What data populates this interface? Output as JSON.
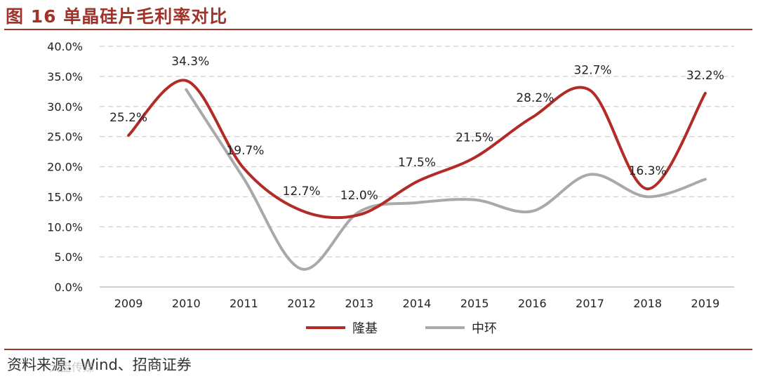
{
  "header": {
    "title": "图 16 单晶硅片毛利率对比"
  },
  "footer": {
    "source": "资料来源：Wind、招商证券",
    "watermark": "大盘传媒"
  },
  "chart_data": {
    "type": "line",
    "title": "图 16 单晶硅片毛利率对比",
    "xlabel": "",
    "ylabel": "",
    "ylim": [
      0,
      40
    ],
    "y_ticks": [
      "0.0%",
      "5.0%",
      "10.0%",
      "15.0%",
      "20.0%",
      "25.0%",
      "30.0%",
      "35.0%",
      "40.0%"
    ],
    "y_tick_values": [
      0,
      5,
      10,
      15,
      20,
      25,
      30,
      35,
      40
    ],
    "categories": [
      "2009",
      "2010",
      "2011",
      "2012",
      "2013",
      "2014",
      "2015",
      "2016",
      "2017",
      "2018",
      "2019"
    ],
    "grid": "horizontal dashed",
    "legend_position": "bottom-center",
    "series": [
      {
        "name": "隆基",
        "color": "#b22b27",
        "values": [
          25.2,
          34.3,
          19.7,
          12.7,
          12.0,
          17.5,
          21.5,
          28.2,
          32.7,
          16.3,
          32.2
        ],
        "labels": [
          "25.2%",
          "34.3%",
          "19.7%",
          "12.7%",
          "12.0%",
          "17.5%",
          "21.5%",
          "28.2%",
          "32.7%",
          "16.3%",
          "32.2%"
        ]
      },
      {
        "name": "中环",
        "color": "#a9a9a9",
        "values": [
          null,
          32.8,
          18.0,
          3.0,
          12.5,
          14.0,
          14.5,
          12.6,
          18.7,
          15.0,
          17.9
        ]
      }
    ]
  }
}
